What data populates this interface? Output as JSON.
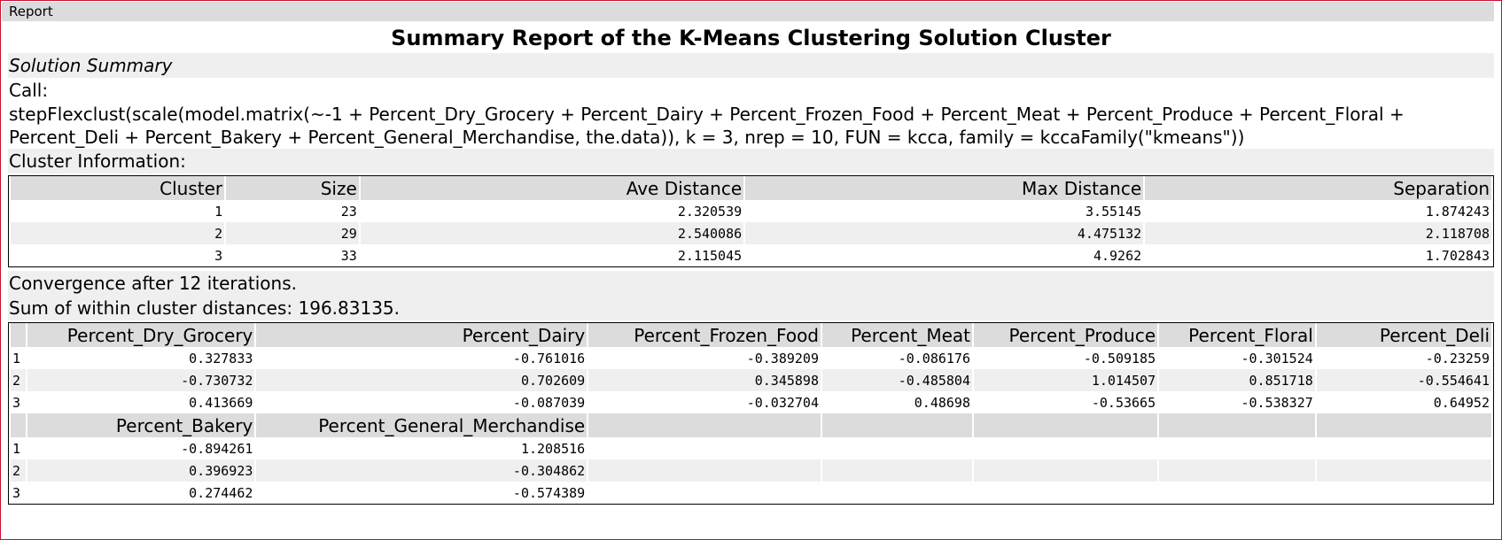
{
  "tab": {
    "label": "Report"
  },
  "report": {
    "title": "Summary Report of the K-Means Clustering Solution Cluster",
    "solution_summary": "Solution Summary",
    "call_label": "Call:",
    "call_line1": "stepFlexclust(scale(model.matrix(~-1 + Percent_Dry_Grocery + Percent_Dairy + Percent_Frozen_Food + Percent_Meat + Percent_Produce + Percent_Floral +",
    "call_line2": "Percent_Deli + Percent_Bakery + Percent_General_Merchandise, the.data)), k = 3, nrep = 10, FUN = kcca, family = kccaFamily(\"kmeans\"))",
    "cluster_info_label": "Cluster Information:",
    "convergence": "Convergence after 12 iterations.",
    "sum_within": "Sum of within cluster distances: 196.83135."
  },
  "cluster_table": {
    "headers": [
      "Cluster",
      "Size",
      "Ave Distance",
      "Max Distance",
      "Separation"
    ],
    "rows": [
      [
        "1",
        "23",
        "2.320539",
        "3.55145",
        "1.874243"
      ],
      [
        "2",
        "29",
        "2.540086",
        "4.475132",
        "2.118708"
      ],
      [
        "3",
        "33",
        "2.115045",
        "4.9262",
        "1.702843"
      ]
    ]
  },
  "centers_table": {
    "headers1": [
      "",
      "Percent_Dry_Grocery",
      "Percent_Dairy",
      "Percent_Frozen_Food",
      "Percent_Meat",
      "Percent_Produce",
      "Percent_Floral",
      "Percent_Deli"
    ],
    "rows1": [
      [
        "1",
        "0.327833",
        "-0.761016",
        "-0.389209",
        "-0.086176",
        "-0.509185",
        "-0.301524",
        "-0.23259"
      ],
      [
        "2",
        "-0.730732",
        "0.702609",
        "0.345898",
        "-0.485804",
        "1.014507",
        "0.851718",
        "-0.554641"
      ],
      [
        "3",
        "0.413669",
        "-0.087039",
        "-0.032704",
        "0.48698",
        "-0.53665",
        "-0.538327",
        "0.64952"
      ]
    ],
    "headers2": [
      "",
      "Percent_Bakery",
      "Percent_General_Merchandise"
    ],
    "rows2": [
      [
        "1",
        "-0.894261",
        "1.208516"
      ],
      [
        "2",
        "0.396923",
        "-0.304862"
      ],
      [
        "3",
        "0.274462",
        "-0.574389"
      ]
    ]
  }
}
